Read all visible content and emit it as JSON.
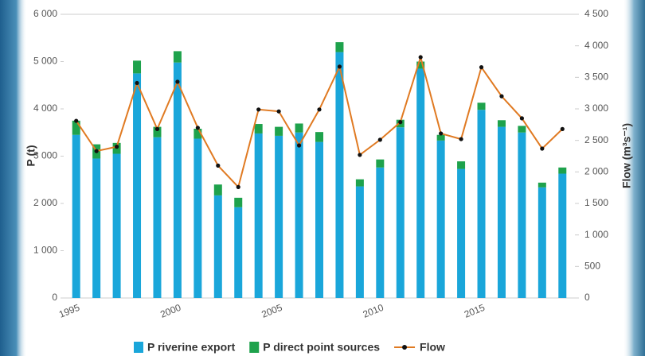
{
  "chart_data": {
    "type": "bar",
    "stacked": true,
    "y_label": "P (t)",
    "y2_label": "Flow (m³s⁻¹)",
    "categories": [
      "1995",
      null,
      null,
      null,
      null,
      "2000",
      null,
      null,
      null,
      null,
      "2005",
      null,
      null,
      null,
      null,
      "2010",
      null,
      null,
      null,
      null,
      "2015",
      null,
      null,
      null,
      null
    ],
    "series": [
      {
        "name": "P riverine export",
        "color": "#1aa6da",
        "values": [
          3450,
          2950,
          3050,
          4750,
          3400,
          4980,
          3370,
          2170,
          1920,
          3480,
          3430,
          3500,
          3300,
          5200,
          2360,
          2760,
          3610,
          4850,
          3330,
          2730,
          3980,
          3620,
          3500,
          2340,
          2630
        ]
      },
      {
        "name": "P direct point sources",
        "color": "#1ea24c",
        "values": [
          300,
          300,
          230,
          270,
          220,
          240,
          210,
          230,
          200,
          200,
          190,
          190,
          210,
          210,
          150,
          170,
          160,
          150,
          120,
          160,
          150,
          140,
          140,
          100,
          130
        ]
      },
      {
        "name": "Flow",
        "color": "#e07a22",
        "marker_color": "#111111",
        "type": "line",
        "axis": "y2",
        "values": [
          2810,
          2330,
          2400,
          3410,
          2680,
          3430,
          2700,
          2100,
          1760,
          2990,
          2960,
          2420,
          2990,
          3670,
          2270,
          2510,
          2790,
          3820,
          2610,
          2520,
          3660,
          3200,
          2850,
          2370,
          2680
        ]
      }
    ],
    "ylim": [
      0,
      6000
    ],
    "yticks": [
      0,
      {
        "value": 1000,
        "label": "1 000"
      },
      {
        "value": 2000,
        "label": "2 000"
      },
      {
        "value": 3000,
        "label": "3 000"
      },
      {
        "value": 4000,
        "label": "4 000"
      },
      {
        "value": 5000,
        "label": "5 000"
      },
      {
        "value": 6000,
        "label": "6 000"
      }
    ],
    "y2lim": [
      0,
      4500
    ],
    "y2ticks": [
      0,
      500,
      {
        "value": 1000,
        "label": "1 000"
      },
      {
        "value": 1500,
        "label": "1 500"
      },
      {
        "value": 2000,
        "label": "2 000"
      },
      {
        "value": 2500,
        "label": "2 500"
      },
      {
        "value": 3000,
        "label": "3 000"
      },
      {
        "value": 3500,
        "label": "3 500"
      },
      {
        "value": 4000,
        "label": "4 000"
      },
      {
        "value": 4500,
        "label": "4 500"
      }
    ],
    "grid": false,
    "legend": "bottom"
  }
}
